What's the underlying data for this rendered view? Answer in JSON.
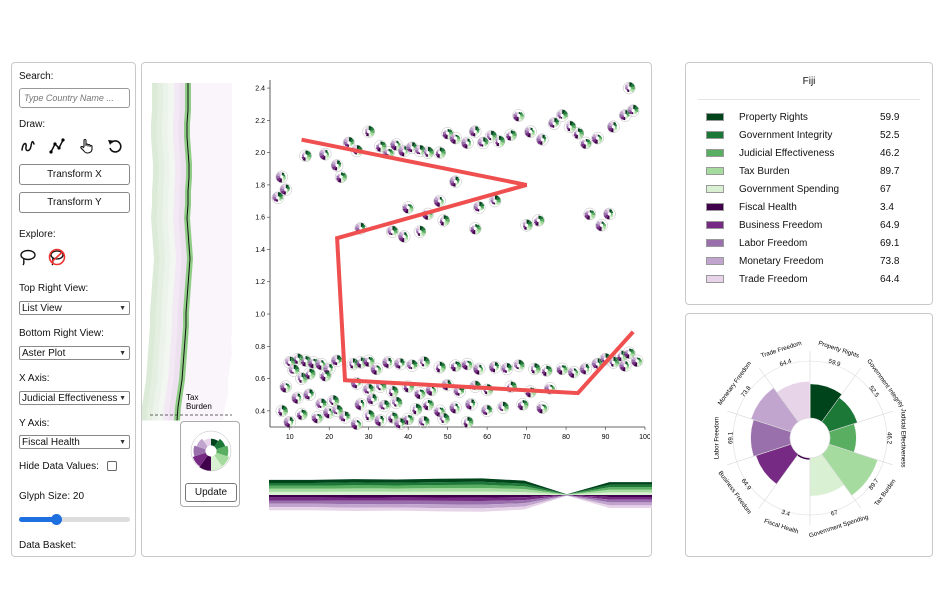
{
  "left_panel": {
    "search_label": "Search:",
    "search_placeholder": "Type Country Name ...",
    "draw_label": "Draw:",
    "tools": [
      "freehand-icon",
      "polyline-icon",
      "pointer-hand-icon",
      "undo-icon"
    ],
    "transform_x_label": "Transform X",
    "transform_y_label": "Transform Y",
    "explore_label": "Explore:",
    "explore_tools": [
      "lasso-icon",
      "lasso-disabled-icon"
    ],
    "top_right_view_label": "Top Right View:",
    "top_right_view_value": "List View",
    "bottom_right_view_label": "Bottom Right View:",
    "bottom_right_view_value": "Aster Plot",
    "x_axis_label": "X Axis:",
    "x_axis_value": "Judicial Effectiveness",
    "y_axis_label": "Y Axis:",
    "y_axis_value": "Fiscal Health",
    "hide_values_label": "Hide Data Values:",
    "hide_values_checked": false,
    "glyph_size_label": "Glyph Size: 20",
    "glyph_size_fraction": 0.33,
    "data_basket_label": "Data Basket:"
  },
  "main_panel": {
    "distribution_label_line1": "Tax",
    "distribution_label_line2": "Burden",
    "update_label": "Update"
  },
  "chart_data": {
    "type": "scatter",
    "title": "",
    "xlabel": "",
    "ylabel": "",
    "xlim": [
      5,
      100
    ],
    "ylim": [
      0.3,
      2.45
    ],
    "xticks": [
      "10",
      "20",
      "30",
      "40",
      "50",
      "60",
      "70",
      "80",
      "90",
      "100"
    ],
    "yticks": [
      "0.4",
      "0.6",
      "0.8",
      "1.0",
      "1.2",
      "1.4",
      "1.6",
      "1.8",
      "2.0",
      "2.2",
      "2.4"
    ],
    "drawn_path": [
      [
        13,
        2.08
      ],
      [
        70,
        1.8
      ],
      [
        22,
        1.47
      ],
      [
        24,
        0.59
      ],
      [
        83,
        0.51
      ],
      [
        97,
        0.89
      ]
    ],
    "points": [
      [
        8,
        1.85
      ],
      [
        9,
        1.77
      ],
      [
        7,
        1.72
      ],
      [
        10,
        0.7
      ],
      [
        12,
        0.72
      ],
      [
        14,
        0.71
      ],
      [
        16,
        0.7
      ],
      [
        18,
        0.69
      ],
      [
        20,
        0.66
      ],
      [
        22,
        0.71
      ],
      [
        11,
        0.65
      ],
      [
        13,
        0.6
      ],
      [
        15,
        0.63
      ],
      [
        19,
        0.62
      ],
      [
        9,
        0.55
      ],
      [
        12,
        0.48
      ],
      [
        15,
        0.5
      ],
      [
        18,
        0.44
      ],
      [
        21,
        0.46
      ],
      [
        8,
        0.4
      ],
      [
        13,
        0.38
      ],
      [
        17,
        0.36
      ],
      [
        20,
        0.39
      ],
      [
        10,
        0.33
      ],
      [
        24,
        0.36
      ],
      [
        22,
        0.4
      ],
      [
        26,
        0.69
      ],
      [
        28,
        0.7
      ],
      [
        30,
        0.71
      ],
      [
        32,
        0.66
      ],
      [
        35,
        0.7
      ],
      [
        38,
        0.69
      ],
      [
        41,
        0.68
      ],
      [
        44,
        0.7
      ],
      [
        48,
        0.67
      ],
      [
        52,
        0.68
      ],
      [
        55,
        0.69
      ],
      [
        58,
        0.66
      ],
      [
        62,
        0.67
      ],
      [
        65,
        0.66
      ],
      [
        68,
        0.68
      ],
      [
        72,
        0.66
      ],
      [
        75,
        0.65
      ],
      [
        79,
        0.66
      ],
      [
        82,
        0.64
      ],
      [
        85,
        0.66
      ],
      [
        88,
        0.69
      ],
      [
        90,
        0.72
      ],
      [
        92,
        0.7
      ],
      [
        94,
        0.74
      ],
      [
        96,
        0.76
      ],
      [
        98,
        0.71
      ],
      [
        95,
        0.68
      ],
      [
        27,
        0.57
      ],
      [
        30,
        0.53
      ],
      [
        33,
        0.55
      ],
      [
        36,
        0.52
      ],
      [
        40,
        0.55
      ],
      [
        43,
        0.51
      ],
      [
        46,
        0.53
      ],
      [
        50,
        0.56
      ],
      [
        53,
        0.52
      ],
      [
        57,
        0.55
      ],
      [
        60,
        0.53
      ],
      [
        66,
        0.55
      ],
      [
        71,
        0.52
      ],
      [
        76,
        0.54
      ],
      [
        28,
        0.44
      ],
      [
        31,
        0.47
      ],
      [
        34,
        0.43
      ],
      [
        37,
        0.45
      ],
      [
        42,
        0.41
      ],
      [
        45,
        0.44
      ],
      [
        48,
        0.4
      ],
      [
        52,
        0.42
      ],
      [
        56,
        0.44
      ],
      [
        60,
        0.4
      ],
      [
        64,
        0.42
      ],
      [
        30,
        0.37
      ],
      [
        36,
        0.36
      ],
      [
        40,
        0.35
      ],
      [
        27,
        0.32
      ],
      [
        33,
        0.34
      ],
      [
        38,
        0.32
      ],
      [
        44,
        0.33
      ],
      [
        49,
        0.35
      ],
      [
        55,
        0.33
      ],
      [
        69,
        0.44
      ],
      [
        74,
        0.42
      ],
      [
        19,
        1.99
      ],
      [
        22,
        1.92
      ],
      [
        25,
        2.06
      ],
      [
        27,
        2.01
      ],
      [
        30,
        2.13
      ],
      [
        33,
        2.04
      ],
      [
        35,
        2.0
      ],
      [
        37,
        2.05
      ],
      [
        39,
        2.01
      ],
      [
        41,
        2.03
      ],
      [
        43,
        2.01
      ],
      [
        45,
        2.0
      ],
      [
        48,
        2.0
      ],
      [
        50,
        2.12
      ],
      [
        52,
        2.09
      ],
      [
        55,
        2.06
      ],
      [
        57,
        2.13
      ],
      [
        59,
        2.06
      ],
      [
        61,
        2.1
      ],
      [
        63,
        2.07
      ],
      [
        66,
        2.11
      ],
      [
        68,
        2.23
      ],
      [
        71,
        2.13
      ],
      [
        74,
        2.08
      ],
      [
        77,
        2.18
      ],
      [
        79,
        2.23
      ],
      [
        81,
        2.16
      ],
      [
        83,
        2.12
      ],
      [
        85,
        2.06
      ],
      [
        88,
        2.09
      ],
      [
        92,
        2.16
      ],
      [
        95,
        2.23
      ],
      [
        97,
        2.26
      ],
      [
        96,
        2.4
      ],
      [
        14,
        1.98
      ],
      [
        23,
        1.85
      ],
      [
        40,
        1.66
      ],
      [
        48,
        1.7
      ],
      [
        52,
        1.82
      ],
      [
        58,
        1.66
      ],
      [
        62,
        1.7
      ],
      [
        70,
        1.55
      ],
      [
        73,
        1.58
      ],
      [
        86,
        1.62
      ],
      [
        89,
        1.55
      ],
      [
        91,
        1.62
      ],
      [
        28,
        1.53
      ],
      [
        36,
        1.51
      ],
      [
        43,
        1.51
      ],
      [
        49,
        1.58
      ],
      [
        57,
        1.53
      ],
      [
        45,
        1.62
      ],
      [
        39,
        1.48
      ]
    ]
  },
  "stream_chart": {
    "type": "area",
    "series": [
      {
        "values": [
          40,
          40,
          42,
          41,
          43,
          44,
          38,
          2,
          34,
          34
        ]
      },
      {
        "values": [
          56,
          55,
          58,
          56,
          59,
          60,
          53,
          2,
          49,
          48
        ]
      },
      {
        "values": [
          67,
          66,
          69,
          67,
          70,
          71,
          64,
          2,
          60,
          59
        ]
      },
      {
        "values": [
          79,
          78,
          80,
          79,
          82,
          83,
          75,
          2,
          70,
          70
        ]
      }
    ]
  },
  "top_right": {
    "country": "Fiji",
    "rows": [
      {
        "name": "Property Rights",
        "value": "59.9",
        "color": "#00441b"
      },
      {
        "name": "Government Integrity",
        "value": "52.5",
        "color": "#1b7837"
      },
      {
        "name": "Judicial Effectiveness",
        "value": "46.2",
        "color": "#5aae61"
      },
      {
        "name": "Tax Burden",
        "value": "89.7",
        "color": "#a6dba0"
      },
      {
        "name": "Government Spending",
        "value": "67",
        "color": "#d9f0d3"
      },
      {
        "name": "Fiscal Health",
        "value": "3.4",
        "color": "#40004b"
      },
      {
        "name": "Business Freedom",
        "value": "64.9",
        "color": "#762a83"
      },
      {
        "name": "Labor Freedom",
        "value": "69.1",
        "color": "#9970ab"
      },
      {
        "name": "Monetary Freedom",
        "value": "73.8",
        "color": "#c2a5cf"
      },
      {
        "name": "Trade Freedom",
        "value": "64.4",
        "color": "#e7d4e8"
      }
    ]
  },
  "aster": {
    "type": "pie",
    "labels": [
      "Property Rights",
      "Government Integrity",
      "Judicial Effectiveness",
      "Tax Burden",
      "Government Spending",
      "Fiscal Health",
      "Business Freedom",
      "Labor Freedom",
      "Monetary Freedom",
      "Trade Freedom"
    ],
    "values": [
      59.9,
      52.5,
      46.2,
      89.7,
      67,
      3.4,
      64.9,
      69.1,
      73.8,
      64.4
    ],
    "value_labels": [
      "59.9",
      "52.5",
      "46.2",
      "89.7",
      "67",
      "3.4",
      "64.9",
      "69.1",
      "73.8",
      "64.4"
    ],
    "colors": [
      "#00441b",
      "#1b7837",
      "#5aae61",
      "#a6dba0",
      "#d9f0d3",
      "#40004b",
      "#762a83",
      "#9970ab",
      "#c2a5cf",
      "#e7d4e8"
    ]
  }
}
